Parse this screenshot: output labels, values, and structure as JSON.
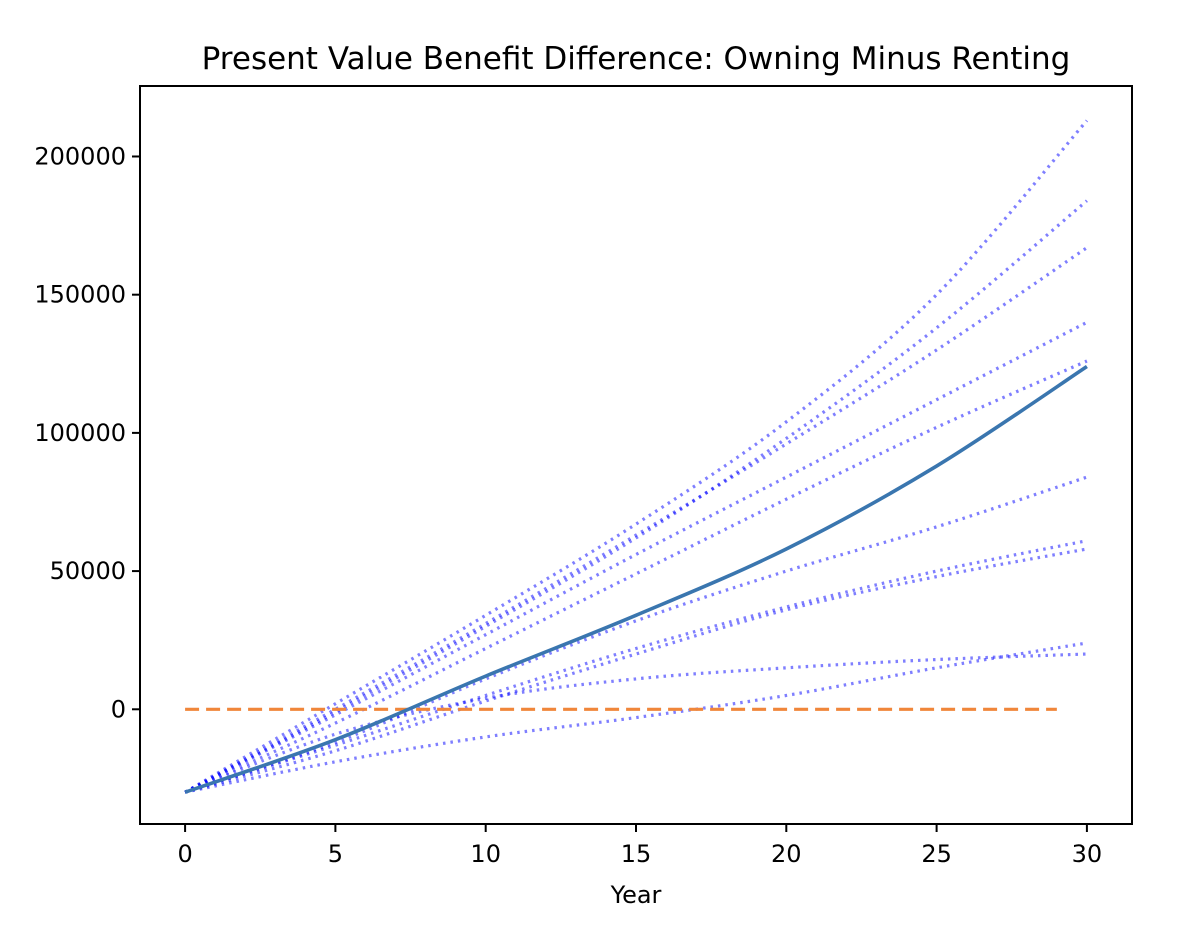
{
  "chart_data": {
    "type": "line",
    "title": "Present Value Benefit Difference: Owning Minus Renting",
    "xlabel": "Year",
    "ylabel": "",
    "xlim": [
      -1.5,
      31.5
    ],
    "ylim": [
      -41500,
      225500
    ],
    "x_ticks": [
      0,
      5,
      10,
      15,
      20,
      25,
      30
    ],
    "y_ticks": [
      0,
      50000,
      100000,
      150000,
      200000
    ],
    "x_tick_labels": [
      "0",
      "5",
      "10",
      "15",
      "20",
      "25",
      "30"
    ],
    "y_tick_labels": [
      "0",
      "50000",
      "100000",
      "150000",
      "200000"
    ],
    "grid": false,
    "legend": "none",
    "x": [
      0,
      5,
      10,
      15,
      20,
      25,
      30
    ],
    "mean_line": {
      "color": "#3a76af",
      "style": "solid",
      "values": [
        -30000,
        -11000,
        12000,
        34000,
        58000,
        88000,
        124000
      ]
    },
    "zero_line": {
      "color": "#f0863a",
      "style": "dashed",
      "x_start": 0,
      "x_end": 29,
      "value": 0
    },
    "scenario_color": "#0000ff",
    "scenario_style": "dotted",
    "scenarios": [
      {
        "values": [
          -30000,
          2000,
          34000,
          67000,
          104000,
          150000,
          213000
        ]
      },
      {
        "values": [
          -30000,
          -1000,
          30000,
          62000,
          98000,
          138000,
          184000
        ]
      },
      {
        "values": [
          -30000,
          0,
          31000,
          63000,
          96000,
          130000,
          167000
        ]
      },
      {
        "values": [
          -30000,
          -2000,
          27000,
          56000,
          84000,
          112000,
          140000
        ]
      },
      {
        "values": [
          -30000,
          -5000,
          22000,
          49000,
          76000,
          102000,
          126000
        ]
      },
      {
        "values": [
          -30000,
          -12000,
          11000,
          32000,
          50000,
          66000,
          84000
        ]
      },
      {
        "values": [
          -30000,
          -13000,
          5000,
          22000,
          37000,
          50000,
          61000
        ]
      },
      {
        "values": [
          -30000,
          -15000,
          3000,
          20000,
          36000,
          48000,
          58000
        ]
      },
      {
        "values": [
          -30000,
          -9000,
          4000,
          11000,
          15000,
          18000,
          20000
        ]
      },
      {
        "values": [
          -30000,
          -19000,
          -10000,
          -3000,
          5000,
          15000,
          24000
        ]
      }
    ]
  }
}
